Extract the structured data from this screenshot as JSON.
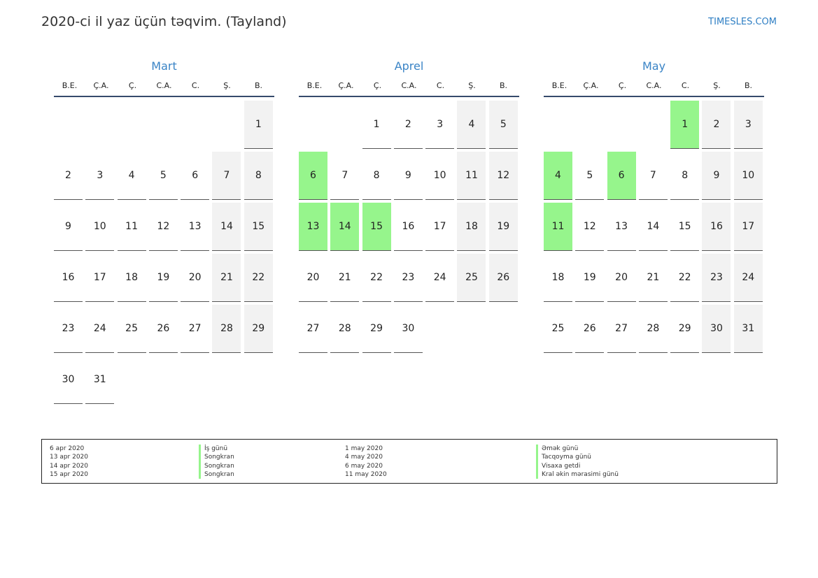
{
  "header": {
    "title": "2020-ci il yaz üçün təqvim. (Tayland)",
    "site": "TIMESLES.COM"
  },
  "colors": {
    "accent": "#3a84c6",
    "holiday": "#96f58c",
    "weekend": "#f2f2f2",
    "rule": "#354a6b"
  },
  "weekdays": [
    "B.E.",
    "Ç.A.",
    "Ç.",
    "C.A.",
    "C.",
    "Ş.",
    "B."
  ],
  "months": [
    {
      "name": "Mart",
      "start_offset": 6,
      "days": 31,
      "holidays": []
    },
    {
      "name": "Aprel",
      "start_offset": 2,
      "days": 30,
      "holidays": [
        6,
        13,
        14,
        15
      ]
    },
    {
      "name": "May",
      "start_offset": 4,
      "days": 31,
      "holidays": [
        1,
        4,
        6,
        11
      ]
    }
  ],
  "legend": {
    "left_dates": [
      "6 apr 2020",
      "13 apr 2020",
      "14 apr 2020",
      "15 apr 2020"
    ],
    "left_names": [
      "İş günü",
      "Songkran",
      "Songkran",
      "Songkran"
    ],
    "right_dates": [
      "1 may 2020",
      "4 may 2020",
      "6 may 2020",
      "11 may 2020"
    ],
    "right_names": [
      "Əmək günü",
      "Tacqoyma günü",
      "Visaxa getdi",
      "Kral əkin mərasimi günü"
    ]
  }
}
